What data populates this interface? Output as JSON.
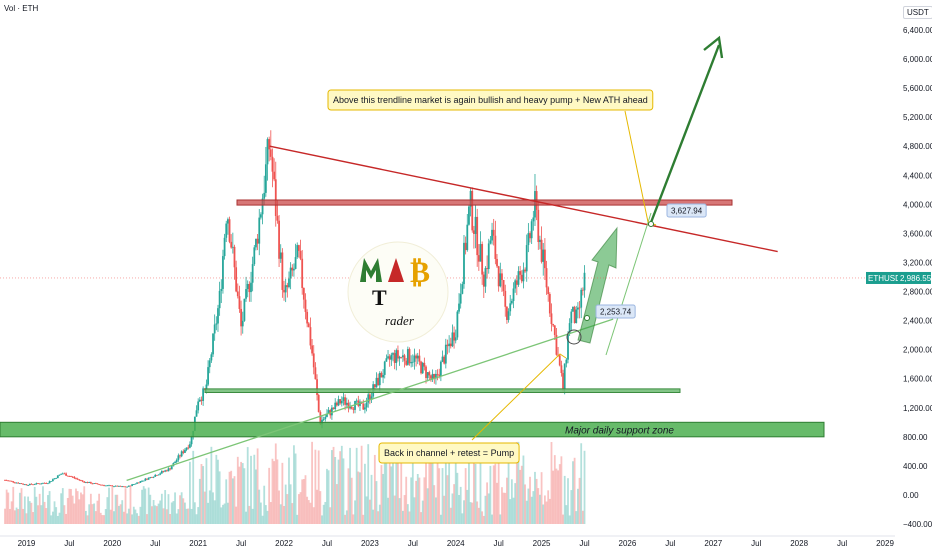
{
  "header": {
    "vol_label": "Vol · ETH",
    "currency": "USDT"
  },
  "axes": {
    "y_ticks": [
      "6,400.00",
      "6,000.00",
      "5,600.00",
      "5,200.00",
      "4,800.00",
      "4,400.00",
      "4,000.00",
      "3,600.00",
      "3,200.00",
      "2,800.00",
      "2,400.00",
      "2,000.00",
      "1,600.00",
      "1,200.00",
      "800.00",
      "400.00",
      "0.00",
      "−400.00"
    ],
    "x_ticks": [
      "2019",
      "Jul",
      "2020",
      "Jul",
      "2021",
      "Jul",
      "2022",
      "Jul",
      "2023",
      "Jul",
      "2024",
      "Jul",
      "2025",
      "Jul",
      "2026",
      "Jul",
      "2027",
      "Jul",
      "2028",
      "Jul",
      "2029"
    ]
  },
  "price_tag": {
    "symbol": "ETHUSDT",
    "value": "2,986.55"
  },
  "levels": {
    "upper": "3,627.94",
    "lower": "2,253.74"
  },
  "annotations": {
    "top_note": "Above this trendline market is again bullish and heavy pump + New ATH ahead",
    "bottom_note": "Back in channel + retest = Pump",
    "support_zone": "Major daily support zone"
  },
  "colors": {
    "up": "#26a69a",
    "down": "#ef5350",
    "trend_red": "#c62828",
    "green_arrow": "#2e7d32",
    "zone_red": "#c94a4a",
    "zone_green": "#4caf50",
    "note_bg": "#fff9c4"
  },
  "chart_data": {
    "type": "line",
    "title": "",
    "series": [
      {
        "values": [
          [
            "2018-10",
            205
          ],
          [
            "2019-01",
            140
          ],
          [
            "2019-04",
            170
          ],
          [
            "2019-06",
            300
          ],
          [
            "2019-09",
            180
          ],
          [
            "2019-12",
            130
          ],
          [
            "2020-03",
            110
          ],
          [
            "2020-06",
            230
          ],
          [
            "2020-09",
            360
          ],
          [
            "2020-12",
            740
          ],
          [
            "2021-01",
            1330
          ],
          [
            "2021-02",
            1420
          ],
          [
            "2021-04",
            2700
          ],
          [
            "2021-05",
            4000
          ],
          [
            "2021-07",
            2300
          ],
          [
            "2021-09",
            3400
          ],
          [
            "2021-11",
            4860
          ],
          [
            "2022-01",
            2700
          ],
          [
            "2022-03",
            3300
          ],
          [
            "2022-05",
            1900
          ],
          [
            "2022-06",
            1000
          ],
          [
            "2022-09",
            1300
          ],
          [
            "2022-12",
            1200
          ],
          [
            "2023-04",
            1900
          ],
          [
            "2023-07",
            1900
          ],
          [
            "2023-10",
            1550
          ],
          [
            "2024-01",
            2300
          ],
          [
            "2024-03",
            4000
          ],
          [
            "2024-05",
            3000
          ],
          [
            "2024-06",
            3600
          ],
          [
            "2024-08",
            2500
          ],
          [
            "2024-11",
            3300
          ],
          [
            "2024-12",
            4000
          ],
          [
            "2025-02",
            2700
          ],
          [
            "2025-04",
            1470
          ],
          [
            "2025-05",
            2500
          ],
          [
            "2025-06",
            2400
          ],
          [
            "2025-07",
            2986.55
          ]
        ]
      }
    ],
    "y_range": [
      -400,
      6500
    ],
    "x_range": [
      "2018-10",
      "2029-01"
    ],
    "current_price": 2986.55,
    "trendlines": [
      {
        "name": "descending resistance",
        "from": [
          "2021-11",
          4800
        ],
        "to": [
          "2027-10",
          3350
        ]
      },
      {
        "name": "ascending support",
        "from": [
          "2020-03",
          200
        ],
        "to": [
          "2025-11",
          2420
        ]
      }
    ],
    "zones": [
      {
        "name": "resistance zone",
        "from": 3990,
        "to": 4060
      },
      {
        "name": "mid support",
        "from": 1410,
        "to": 1460
      },
      {
        "name": "Major daily support zone",
        "from": 800,
        "to": 1000
      }
    ],
    "grid": false
  }
}
